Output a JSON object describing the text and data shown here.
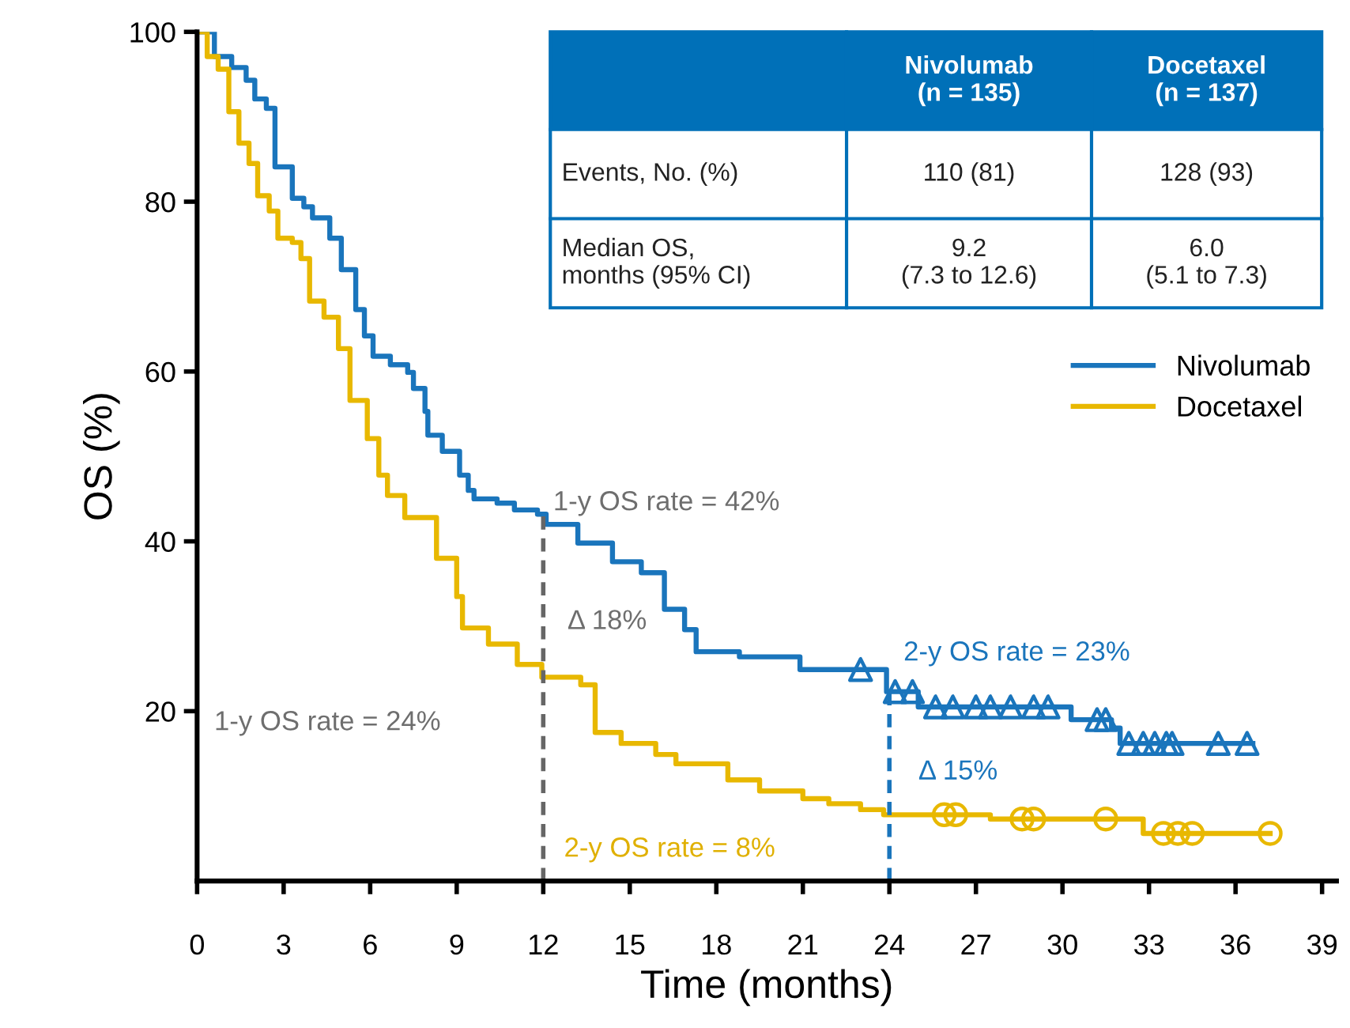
{
  "chart_data": {
    "type": "step",
    "xlabel": "Time (months)",
    "ylabel": "OS (%)",
    "xlim": [
      0,
      39.5
    ],
    "xticks": [
      0,
      3,
      6,
      9,
      12,
      15,
      18,
      21,
      24,
      27,
      30,
      33,
      36,
      39
    ],
    "ylim": [
      0,
      100
    ],
    "yticks": [
      20,
      40,
      60,
      80,
      100
    ],
    "grid": false,
    "legend": "right",
    "line_style": "solid",
    "series": [
      {
        "name": "Nivolumab",
        "color": "#1a75bc",
        "x": [
          0,
          0.6,
          1.2,
          1.7,
          2.0,
          2.4,
          2.7,
          3.3,
          3.7,
          4.0,
          4.6,
          5.0,
          5.5,
          5.8,
          6.1,
          6.7,
          7.3,
          7.5,
          7.9,
          8.0,
          8.5,
          9.1,
          9.4,
          9.6,
          10.4,
          11.0,
          11.8,
          12.1,
          13.2,
          14.4,
          15.4,
          16.2,
          16.9,
          17.3,
          17.8,
          18.8,
          20.9,
          23.9,
          25.0,
          30.3,
          31.7,
          32.0,
          36.6
        ],
        "values": [
          100,
          97.1,
          95.8,
          94.3,
          92.1,
          91.0,
          84.1,
          80.4,
          79.4,
          78.1,
          75.7,
          72.0,
          67.3,
          64.2,
          61.8,
          60.8,
          59.9,
          58.0,
          55.3,
          52.5,
          50.6,
          47.8,
          46.0,
          45.0,
          44.5,
          43.7,
          43.2,
          42.0,
          39.8,
          37.6,
          36.3,
          32.0,
          29.6,
          27.0,
          27.0,
          26.4,
          24.9,
          22.3,
          20.5,
          19.0,
          18.0,
          16.2,
          16.2
        ]
      },
      {
        "name": "Docetaxel",
        "color": "#e8b800",
        "x": [
          0,
          0.35,
          0.73,
          1.1,
          1.45,
          1.8,
          2.1,
          2.5,
          2.8,
          3.3,
          3.6,
          3.9,
          4.4,
          4.9,
          5.3,
          5.9,
          6.3,
          6.6,
          7.2,
          8.3,
          9.0,
          9.2,
          10.1,
          11.1,
          11.95,
          13.3,
          13.8,
          14.7,
          15.9,
          16.6,
          18.4,
          19.5,
          21.0,
          21.9,
          23.0,
          23.8,
          27.5,
          32.8,
          37.2
        ],
        "values": [
          100,
          97.1,
          95.6,
          90.6,
          86.9,
          84.5,
          80.7,
          78.9,
          75.7,
          75.2,
          73.3,
          68.3,
          66.4,
          62.7,
          56.6,
          52.1,
          47.8,
          45.4,
          42.8,
          38.0,
          33.5,
          29.8,
          27.9,
          25.5,
          24.0,
          23.1,
          17.5,
          16.2,
          14.9,
          13.8,
          11.9,
          10.6,
          9.7,
          9.1,
          8.4,
          7.8,
          7.3,
          5.6,
          5.6
        ]
      },
      {
        "type": "scatter",
        "marker": "triangle",
        "color": "#1a75bc",
        "x": [
          23.0,
          24.2,
          24.8,
          25.6,
          26.2,
          27.0,
          27.5,
          28.2,
          29.0,
          29.5,
          31.2,
          31.5,
          32.3,
          32.8,
          33.2,
          33.6,
          33.8,
          35.4,
          36.4
        ],
        "values": [
          24.9,
          22.3,
          22.3,
          20.5,
          20.5,
          20.5,
          20.5,
          20.5,
          20.5,
          20.5,
          19.0,
          19.0,
          16.2,
          16.2,
          16.2,
          16.2,
          16.2,
          16.2,
          16.2
        ]
      },
      {
        "type": "scatter",
        "marker": "circle",
        "color": "#e8b800",
        "x": [
          25.9,
          26.3,
          28.6,
          29.0,
          31.5,
          33.5,
          34.0,
          34.5,
          37.2
        ],
        "values": [
          7.8,
          7.8,
          7.3,
          7.3,
          7.3,
          5.6,
          5.6,
          5.6,
          5.6
        ]
      }
    ],
    "ref_lines": [
      {
        "axis": "x",
        "value": 12,
        "color": "#666666",
        "line_style": "dashed"
      },
      {
        "axis": "x",
        "value": 24,
        "color": "#1a75bc",
        "line_style": "dashed"
      }
    ],
    "annotations": [
      "1-y OS rate = 42%",
      "Δ 18%",
      "1-y OS rate = 24%",
      "2-y OS rate = 8%",
      "2-y OS rate = 23%",
      "Δ 15%",
      "Nivolumab\n(n = 135)",
      "Docetaxel\n(n = 137)",
      "Events, No. (%)",
      "110 (81)",
      "128 (93)",
      "Median OS,\nmonths (95% CI)",
      "9.2\n(7.3 to 12.6)",
      "6.0\n(5.1 to 7.3)"
    ]
  }
}
